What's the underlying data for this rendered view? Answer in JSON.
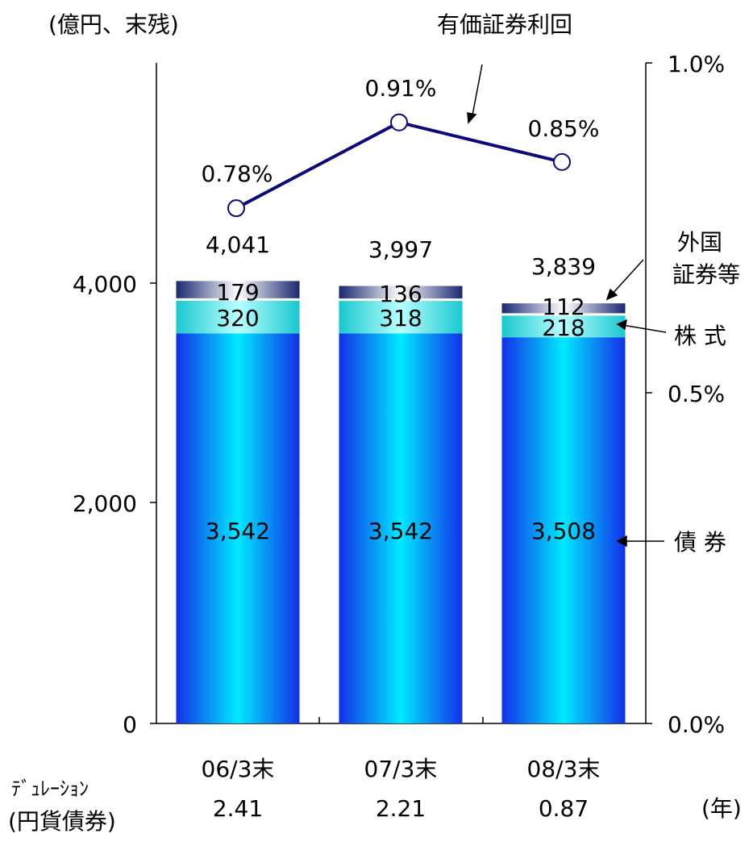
{
  "chart_data": {
    "type": "bar",
    "stacked": true,
    "title": "",
    "ylabel_left": "(億円、末残)",
    "categories": [
      "06/3末",
      "07/3末",
      "08/3末"
    ],
    "left_axis": {
      "ylim": [
        0,
        4000
      ],
      "ticks": [
        "0",
        "2,000",
        "4,000"
      ],
      "tick_values": [
        0,
        2000,
        4000
      ]
    },
    "right_axis": {
      "ylim": [
        0.0,
        1.0
      ],
      "ticks": [
        "0.0%",
        "0.5%",
        "1.0%"
      ],
      "tick_values": [
        0.0,
        0.5,
        1.0
      ]
    },
    "series": [
      {
        "name": "債 券",
        "values": [
          3542,
          3542,
          3508
        ],
        "labels": [
          "3,542",
          "3,542",
          "3,508"
        ],
        "color": "#0a3cf0"
      },
      {
        "name": "株 式",
        "values": [
          320,
          318,
          218
        ],
        "labels": [
          "320",
          "318",
          "218"
        ],
        "color": "#20cfd6"
      },
      {
        "name": "外国\n証券等",
        "values": [
          179,
          136,
          112
        ],
        "labels": [
          "179",
          "136",
          "112"
        ],
        "color": "#1c2a7a"
      }
    ],
    "totals": {
      "values": [
        4041,
        3997,
        3839
      ],
      "labels": [
        "4,041",
        "3,997",
        "3,839"
      ]
    },
    "line_series": {
      "name": "有価証券利回",
      "values": [
        0.78,
        0.91,
        0.85
      ],
      "labels": [
        "0.78%",
        "0.91%",
        "0.85%"
      ],
      "color": "#0a0a7a"
    },
    "duration": {
      "label_line1": "ﾃﾞｭﾚｰｼｮﾝ",
      "label_line2": "(円貨債券)",
      "values": [
        "2.41",
        "2.21",
        "0.87"
      ],
      "unit": "(年)"
    }
  }
}
